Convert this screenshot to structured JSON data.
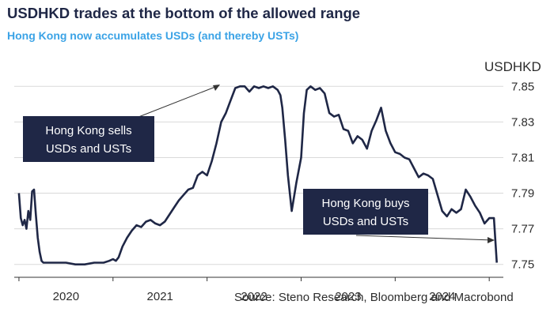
{
  "title": "USDHKD trades at the bottom of the allowed range",
  "subtitle": "Hong Kong now accumulates USDs (and thereby USTs)",
  "source": "Source: Steno Research, Bloomberg and Macrobond",
  "colors": {
    "line": "#1f2746",
    "title": "#1f2746",
    "subtitle": "#3ba3e6",
    "callout": "#1f2746",
    "grid": "#d9d9d9"
  },
  "chart_data": {
    "type": "line",
    "title": "USDHKD trades at the bottom of the allowed range",
    "ylabel": "USDHKD",
    "ylim": [
      7.745,
      7.855
    ],
    "xlim": [
      2019.95,
      2025.15
    ],
    "grid": true,
    "y_axis_position": "right",
    "y_ticks": [
      "7.85",
      "7.83",
      "7.81",
      "7.79",
      "7.77",
      "7.75"
    ],
    "y_tick_values": [
      7.85,
      7.83,
      7.81,
      7.79,
      7.77,
      7.75
    ],
    "x_ticks": [
      "2020",
      "2021",
      "2022",
      "2023",
      "2024"
    ],
    "x_tick_values": [
      2020.5,
      2021.5,
      2022.5,
      2023.5,
      2024.5
    ],
    "annotations": [
      {
        "lines": [
          "Hong Kong sells",
          "USDs and USTs"
        ],
        "points_to": "2022 peak near 7.85"
      },
      {
        "lines": [
          "Hong Kong buys",
          "USDs and USTs"
        ],
        "points_to": "2025 low near 7.75"
      }
    ],
    "series": [
      {
        "x": [
          2020.0,
          2020.02,
          2020.04,
          2020.06,
          2020.08,
          2020.1,
          2020.12,
          2020.14,
          2020.16,
          2020.18,
          2020.2,
          2020.22,
          2020.24,
          2020.26,
          2020.28,
          2020.3,
          2020.35,
          2020.4,
          2020.5,
          2020.6,
          2020.7,
          2020.8,
          2020.9,
          2020.96,
          2021.0,
          2021.03,
          2021.06,
          2021.1,
          2021.15,
          2021.2,
          2021.25,
          2021.3,
          2021.35,
          2021.4,
          2021.45,
          2021.5,
          2021.55,
          2021.6,
          2021.65,
          2021.7,
          2021.75,
          2021.8,
          2021.85,
          2021.9,
          2021.95,
          2022.0,
          2022.05,
          2022.1,
          2022.15,
          2022.2,
          2022.25,
          2022.3,
          2022.35,
          2022.4,
          2022.45,
          2022.5,
          2022.55,
          2022.6,
          2022.65,
          2022.7,
          2022.75,
          2022.78,
          2022.8,
          2022.83,
          2022.86,
          2022.9,
          2022.95,
          2023.0,
          2023.03,
          2023.06,
          2023.1,
          2023.15,
          2023.2,
          2023.25,
          2023.3,
          2023.35,
          2023.4,
          2023.45,
          2023.5,
          2023.55,
          2023.6,
          2023.65,
          2023.7,
          2023.75,
          2023.8,
          2023.85,
          2023.9,
          2023.95,
          2024.0,
          2024.05,
          2024.1,
          2024.15,
          2024.2,
          2024.25,
          2024.3,
          2024.35,
          2024.4,
          2024.45,
          2024.5,
          2024.55,
          2024.6,
          2024.65,
          2024.7,
          2024.75,
          2024.8,
          2024.85,
          2024.9,
          2024.95,
          2025.0,
          2025.05,
          2025.08
        ],
        "values": [
          7.79,
          7.776,
          7.772,
          7.775,
          7.77,
          7.78,
          7.775,
          7.791,
          7.792,
          7.778,
          7.765,
          7.757,
          7.752,
          7.751,
          7.751,
          7.751,
          7.751,
          7.751,
          7.751,
          7.75,
          7.75,
          7.751,
          7.751,
          7.752,
          7.753,
          7.752,
          7.754,
          7.76,
          7.765,
          7.769,
          7.772,
          7.771,
          7.774,
          7.775,
          7.773,
          7.772,
          7.774,
          7.778,
          7.782,
          7.786,
          7.789,
          7.792,
          7.793,
          7.8,
          7.802,
          7.8,
          7.808,
          7.818,
          7.83,
          7.835,
          7.842,
          7.849,
          7.85,
          7.85,
          7.847,
          7.85,
          7.849,
          7.85,
          7.849,
          7.85,
          7.848,
          7.845,
          7.838,
          7.82,
          7.8,
          7.78,
          7.796,
          7.81,
          7.835,
          7.848,
          7.85,
          7.848,
          7.849,
          7.846,
          7.835,
          7.833,
          7.834,
          7.826,
          7.825,
          7.818,
          7.822,
          7.82,
          7.815,
          7.825,
          7.831,
          7.838,
          7.825,
          7.818,
          7.813,
          7.812,
          7.81,
          7.809,
          7.804,
          7.799,
          7.801,
          7.8,
          7.798,
          7.789,
          7.78,
          7.777,
          7.781,
          7.779,
          7.781,
          7.792,
          7.788,
          7.783,
          7.779,
          7.773,
          7.776,
          7.776,
          7.751
        ]
      }
    ]
  }
}
